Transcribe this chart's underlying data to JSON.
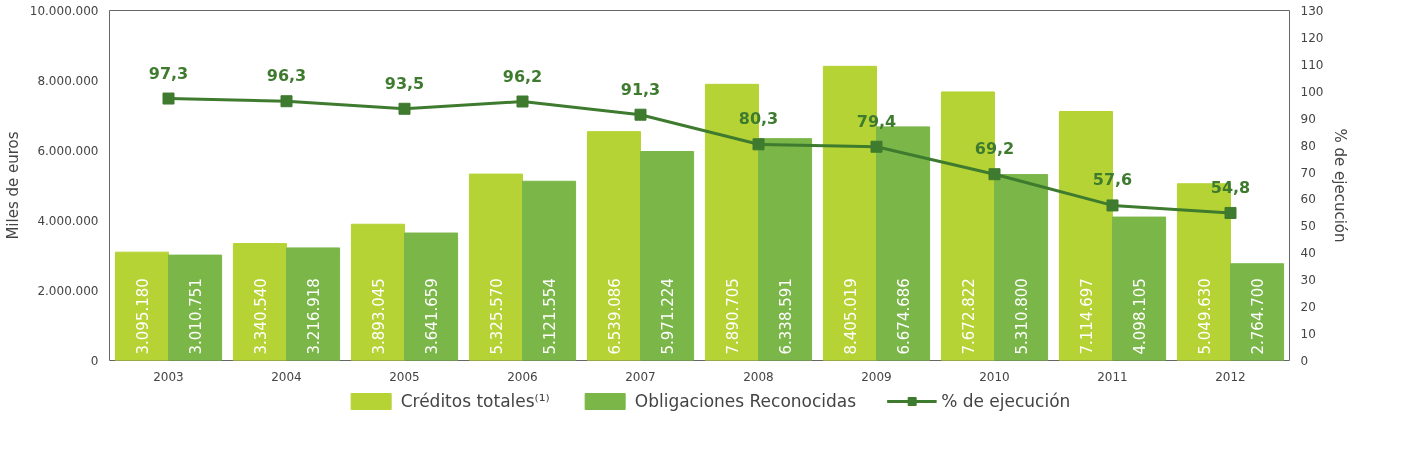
{
  "chart_data": {
    "type": "bar",
    "categories": [
      "2003",
      "2004",
      "2005",
      "2006",
      "2007",
      "2008",
      "2009",
      "2010",
      "2011",
      "2012"
    ],
    "ylabel": "Miles de euros",
    "y2label": "% de ejecución",
    "ylim": [
      0,
      10000000
    ],
    "yticks": [
      0,
      {
        "value": 2000000,
        "label": "2.000.000"
      },
      {
        "value": 4000000,
        "label": "4.000.000"
      },
      {
        "value": 6000000,
        "label": "6.000.000"
      },
      {
        "value": 8000000,
        "label": "8.000.000"
      },
      {
        "value": 10000000,
        "label": "10.000.000"
      }
    ],
    "y2lim": [
      0,
      130
    ],
    "y2ticks": [
      0,
      10,
      20,
      30,
      40,
      50,
      60,
      70,
      80,
      90,
      100,
      110,
      120,
      130
    ],
    "series": [
      {
        "name": "Créditos totales⁽¹⁾",
        "color": "#b5d334",
        "values": [
          3095180,
          3340540,
          3893045,
          5325570,
          6539086,
          7890705,
          8405019,
          7672822,
          7114697,
          5049630
        ],
        "value_labels": [
          "3.095.180",
          "3.340.540",
          "3.893.045",
          "5.325.570",
          "6.539.086",
          "7.890.705",
          "8.405.019",
          "7.672.822",
          "7.114.697",
          "5.049.630"
        ]
      },
      {
        "name": "Obligaciones Reconocidas",
        "color": "#7ab648",
        "values": [
          3010751,
          3216918,
          3641659,
          5121554,
          5971224,
          6338591,
          6674686,
          5310800,
          4098105,
          2764700
        ],
        "value_labels": [
          "3.010.751",
          "3.216.918",
          "3.641.659",
          "5.121.554",
          "5.971.224",
          "6.338.591",
          "6.674.686",
          "5.310.800",
          "4.098.105",
          "2.764.700"
        ]
      },
      {
        "name": "% de ejecución",
        "type": "line",
        "axis": "y2",
        "color": "#3e7b2f",
        "values": [
          97.3,
          96.3,
          93.5,
          96.2,
          91.3,
          80.3,
          79.4,
          69.2,
          57.6,
          54.8
        ],
        "value_labels": [
          "97,3",
          "96,3",
          "93,5",
          "96,2",
          "91,3",
          "80,3",
          "79,4",
          "69,2",
          "57,6",
          "54,8"
        ]
      }
    ],
    "legend": "bottom",
    "marker": "square",
    "grid": false
  }
}
